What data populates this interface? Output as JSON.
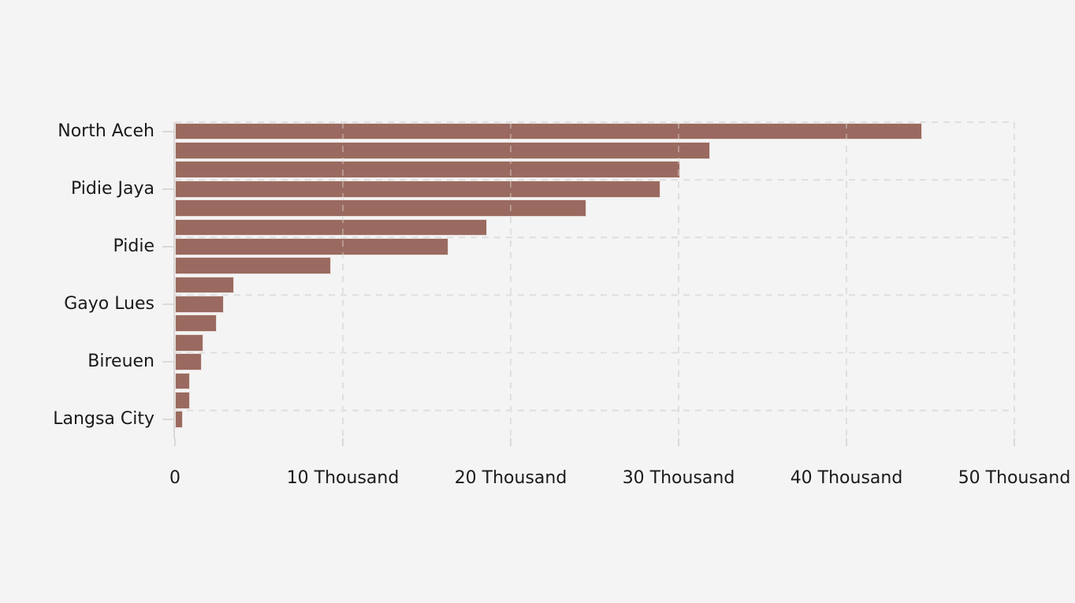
{
  "canvas": {
    "background": "#f4f4f4"
  },
  "chart_data": {
    "type": "bar",
    "orientation": "horizontal",
    "title": "",
    "subtitle": "",
    "xlabel": "",
    "ylabel": "",
    "xlim": [
      0,
      50000
    ],
    "grid": "dashed",
    "legend_position": "none",
    "colors": {
      "bar_fill": "#9a6a60",
      "bar_border": "#e9dedb",
      "grid_line": "#d2d2d2",
      "grid_over_bar": "rgba(255,255,255,0.30)",
      "axis_line": "#d9d9d9",
      "text": "#1a1a1a"
    },
    "x_ticks": [
      {
        "value": 0,
        "label": "0"
      },
      {
        "value": 10000,
        "label": "10 Thousand"
      },
      {
        "value": 20000,
        "label": "20 Thousand"
      },
      {
        "value": 30000,
        "label": "30 Thousand"
      },
      {
        "value": 40000,
        "label": "40 Thousand"
      },
      {
        "value": 50000,
        "label": "50 Thousand"
      }
    ],
    "y_tick_label_every": 3,
    "bars": [
      {
        "label": "North Aceh",
        "value": 44500
      },
      {
        "label": "",
        "value": 31900
      },
      {
        "label": "",
        "value": 30100
      },
      {
        "label": "Pidie Jaya",
        "value": 28900
      },
      {
        "label": "",
        "value": 24500
      },
      {
        "label": "",
        "value": 18600
      },
      {
        "label": "Pidie",
        "value": 16300
      },
      {
        "label": "",
        "value": 9300
      },
      {
        "label": "",
        "value": 3500
      },
      {
        "label": "Gayo Lues",
        "value": 2900
      },
      {
        "label": "",
        "value": 2500
      },
      {
        "label": "",
        "value": 1700
      },
      {
        "label": "Bireuen",
        "value": 1600
      },
      {
        "label": "",
        "value": 880
      },
      {
        "label": "",
        "value": 880
      },
      {
        "label": "Langsa City",
        "value": 470
      }
    ]
  }
}
